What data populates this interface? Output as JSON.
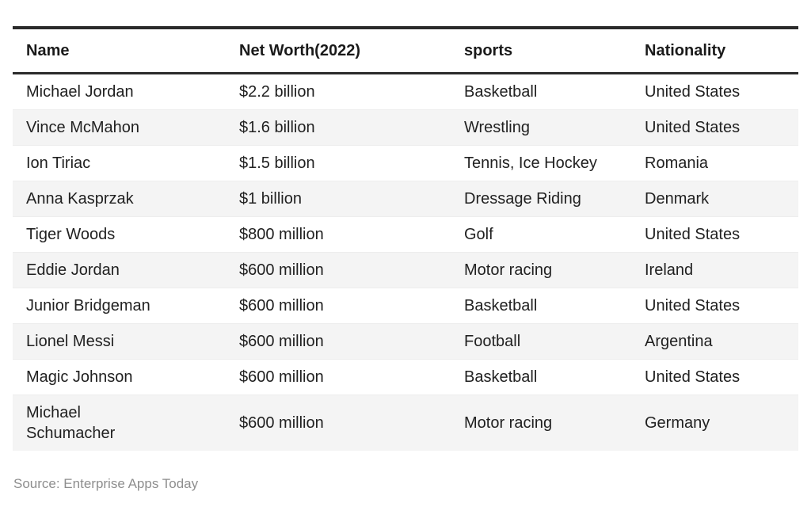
{
  "chart_data": {
    "type": "table",
    "columns": [
      "Name",
      "Net Worth(2022)",
      "sports",
      "Nationality"
    ],
    "rows": [
      {
        "name": "Michael Jordan",
        "net_worth": "$2.2 billion",
        "sports": "Basketball",
        "nationality": "United States"
      },
      {
        "name": "Vince McMahon",
        "net_worth": "$1.6 billion",
        "sports": "Wrestling",
        "nationality": "United States"
      },
      {
        "name": "Ion Tiriac",
        "net_worth": "$1.5 billion",
        "sports": "Tennis, Ice Hockey",
        "nationality": "Romania"
      },
      {
        "name": "Anna Kasprzak",
        "net_worth": "$1 billion",
        "sports": "Dressage Riding",
        "nationality": "Denmark"
      },
      {
        "name": "Tiger Woods",
        "net_worth": "$800 million",
        "sports": "Golf",
        "nationality": "United States"
      },
      {
        "name": "Eddie Jordan",
        "net_worth": "$600 million",
        "sports": "Motor racing",
        "nationality": "Ireland"
      },
      {
        "name": "Junior Bridgeman",
        "net_worth": "$600 million",
        "sports": "Basketball",
        "nationality": "United States"
      },
      {
        "name": "Lionel Messi",
        "net_worth": "$600 million",
        "sports": "Football",
        "nationality": "Argentina"
      },
      {
        "name": "Magic Johnson",
        "net_worth": "$600 million",
        "sports": "Basketball",
        "nationality": "United States"
      },
      {
        "name": "Michael Schumacher",
        "net_worth": "$600 million",
        "sports": "Motor racing",
        "nationality": "Germany"
      }
    ],
    "layout": {
      "stripes": true,
      "header_rule": true,
      "top_rule": true
    }
  },
  "footer": {
    "source": "Source: Enterprise Apps Today"
  },
  "colors": {
    "background": "#ffffff",
    "rule": "#2b2b2b",
    "header_text": "#1a1a1a",
    "body_text": "#212121",
    "stripe": "#f4f4f4",
    "row_divider": "#ededed",
    "source_text": "#8e8e8e"
  }
}
